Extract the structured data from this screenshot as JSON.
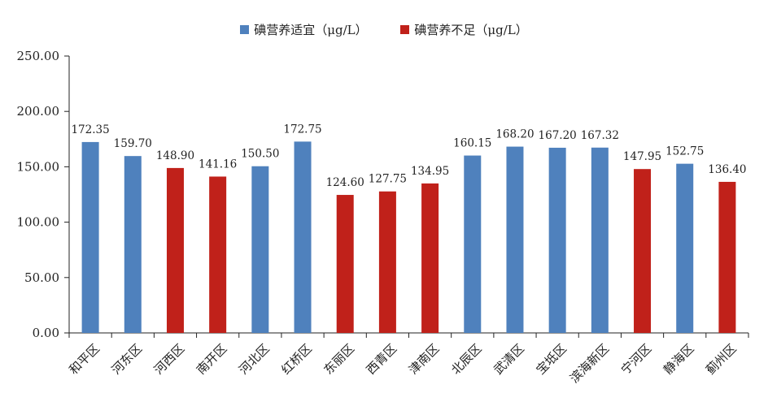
{
  "chart_data": {
    "type": "bar",
    "title": "",
    "xlabel": "",
    "ylabel": "",
    "ylim": [
      0,
      250
    ],
    "yticks": [
      "0.00",
      "50.00",
      "100.00",
      "150.00",
      "200.00",
      "250.00"
    ],
    "grid": false,
    "legend_position": "top-center",
    "legend": [
      {
        "name": "碘营养适宜（μg/L）",
        "color": "#4f81bd"
      },
      {
        "name": "碘营养不足（μg/L）",
        "color": "#c0211a"
      }
    ],
    "categories": [
      "和平区",
      "河东区",
      "河西区",
      "南开区",
      "河北区",
      "红桥区",
      "东丽区",
      "西青区",
      "津南区",
      "北辰区",
      "武清区",
      "宝坻区",
      "滨海新区",
      "宁河区",
      "静海区",
      "蓟州区"
    ],
    "values": [
      172.35,
      159.7,
      148.9,
      141.16,
      150.5,
      172.75,
      124.6,
      127.75,
      134.95,
      160.15,
      168.2,
      167.2,
      167.32,
      147.95,
      152.75,
      136.4
    ],
    "labels": [
      "172.35",
      "159.70",
      "148.90",
      "141.16",
      "150.50",
      "172.75",
      "124.60",
      "127.75",
      "134.95",
      "160.15",
      "168.20",
      "167.20",
      "167.32",
      "147.95",
      "152.75",
      "136.40"
    ],
    "status": [
      0,
      0,
      1,
      1,
      0,
      0,
      1,
      1,
      1,
      0,
      0,
      0,
      0,
      1,
      0,
      1
    ]
  }
}
